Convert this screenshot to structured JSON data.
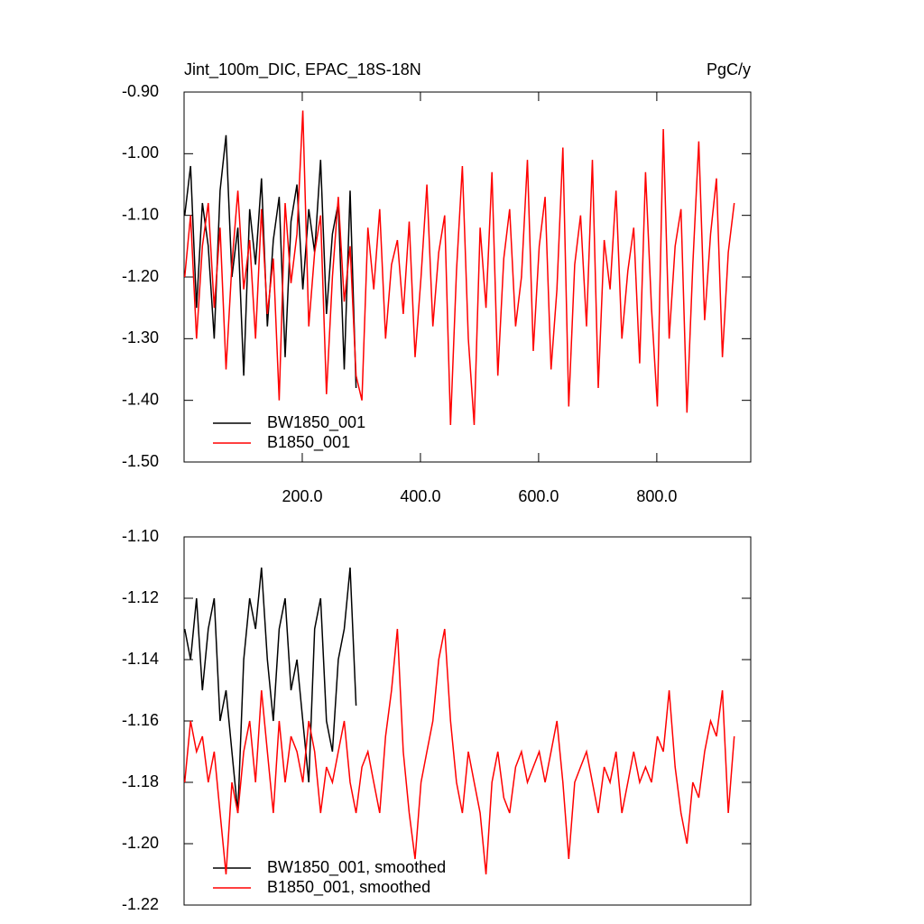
{
  "chart_data": [
    {
      "type": "line",
      "title": "Jint_100m_DIC, EPAC_18S-18N",
      "units": "PgC/y",
      "xlim": [
        0,
        959
      ],
      "xticks": [
        {
          "value": 200,
          "label": "200.0"
        },
        {
          "value": 400,
          "label": "400.0"
        },
        {
          "value": 600,
          "label": "600.0"
        },
        {
          "value": 800,
          "label": "800.0"
        }
      ],
      "ylim": [
        -1.5,
        -0.9
      ],
      "yticks": [
        {
          "value": -1.5,
          "label": "-1.50"
        },
        {
          "value": -1.4,
          "label": "-1.40"
        },
        {
          "value": -1.3,
          "label": "-1.30"
        },
        {
          "value": -1.2,
          "label": "-1.20"
        },
        {
          "value": -1.1,
          "label": "-1.10"
        },
        {
          "value": -1.0,
          "label": "-1.00"
        },
        {
          "value": -0.9,
          "label": "-0.90"
        }
      ],
      "series": [
        {
          "name": "BW1850_001",
          "color": "#000000",
          "x": [
            1,
            11,
            21,
            31,
            41,
            51,
            61,
            71,
            81,
            91,
            101,
            111,
            121,
            131,
            141,
            151,
            161,
            171,
            181,
            191,
            201,
            211,
            221,
            231,
            241,
            251,
            261,
            271,
            281,
            291
          ],
          "values": [
            -1.1,
            -1.02,
            -1.25,
            -1.08,
            -1.15,
            -1.3,
            -1.06,
            -0.97,
            -1.2,
            -1.12,
            -1.36,
            -1.09,
            -1.18,
            -1.04,
            -1.28,
            -1.14,
            -1.07,
            -1.33,
            -1.11,
            -1.05,
            -1.22,
            -1.09,
            -1.16,
            -1.01,
            -1.26,
            -1.13,
            -1.08,
            -1.35,
            -1.06,
            -1.38
          ]
        },
        {
          "name": "B1850_001",
          "color": "#ff0000",
          "x": [
            1,
            11,
            21,
            31,
            41,
            51,
            61,
            71,
            81,
            91,
            101,
            111,
            121,
            131,
            141,
            151,
            161,
            171,
            181,
            191,
            201,
            211,
            221,
            231,
            241,
            251,
            261,
            271,
            281,
            291,
            301,
            311,
            321,
            331,
            341,
            351,
            361,
            371,
            381,
            391,
            401,
            411,
            421,
            431,
            441,
            451,
            461,
            471,
            481,
            491,
            501,
            511,
            521,
            531,
            541,
            551,
            561,
            571,
            581,
            591,
            601,
            611,
            621,
            631,
            641,
            651,
            661,
            671,
            681,
            691,
            701,
            711,
            721,
            731,
            741,
            751,
            761,
            771,
            781,
            791,
            801,
            811,
            821,
            831,
            841,
            851,
            861,
            871,
            881,
            891,
            901,
            911,
            921,
            931
          ],
          "values": [
            -1.2,
            -1.1,
            -1.3,
            -1.15,
            -1.08,
            -1.25,
            -1.12,
            -1.35,
            -1.18,
            -1.06,
            -1.22,
            -1.14,
            -1.3,
            -1.09,
            -1.26,
            -1.17,
            -1.4,
            -1.08,
            -1.21,
            -1.13,
            -0.93,
            -1.28,
            -1.16,
            -1.1,
            -1.39,
            -1.2,
            -1.07,
            -1.24,
            -1.15,
            -1.36,
            -1.4,
            -1.12,
            -1.22,
            -1.09,
            -1.3,
            -1.18,
            -1.14,
            -1.26,
            -1.11,
            -1.33,
            -1.2,
            -1.05,
            -1.28,
            -1.16,
            -1.1,
            -1.44,
            -1.19,
            -1.02,
            -1.3,
            -1.44,
            -1.12,
            -1.25,
            -1.03,
            -1.36,
            -1.17,
            -1.09,
            -1.28,
            -1.2,
            -1.01,
            -1.32,
            -1.15,
            -1.07,
            -1.35,
            -1.22,
            -0.99,
            -1.41,
            -1.18,
            -1.1,
            -1.28,
            -1.01,
            -1.38,
            -1.14,
            -1.22,
            -1.06,
            -1.3,
            -1.19,
            -1.12,
            -1.34,
            -1.03,
            -1.25,
            -1.41,
            -0.96,
            -1.3,
            -1.15,
            -1.09,
            -1.42,
            -1.18,
            -0.98,
            -1.27,
            -1.13,
            -1.04,
            -1.33,
            -1.16,
            -1.08
          ]
        }
      ]
    },
    {
      "type": "line",
      "xlim": [
        0,
        959
      ],
      "ylim": [
        -1.22,
        -1.1
      ],
      "yticks": [
        {
          "value": -1.22,
          "label": "-1.22"
        },
        {
          "value": -1.2,
          "label": "-1.20"
        },
        {
          "value": -1.18,
          "label": "-1.18"
        },
        {
          "value": -1.16,
          "label": "-1.16"
        },
        {
          "value": -1.14,
          "label": "-1.14"
        },
        {
          "value": -1.12,
          "label": "-1.12"
        },
        {
          "value": -1.1,
          "label": "-1.10"
        }
      ],
      "series": [
        {
          "name": "BW1850_001, smoothed",
          "color": "#000000",
          "x": [
            1,
            11,
            21,
            31,
            41,
            51,
            61,
            71,
            81,
            91,
            101,
            111,
            121,
            131,
            141,
            151,
            161,
            171,
            181,
            191,
            201,
            211,
            221,
            231,
            241,
            251,
            261,
            271,
            281,
            291
          ],
          "values": [
            -1.13,
            -1.14,
            -1.12,
            -1.15,
            -1.13,
            -1.12,
            -1.16,
            -1.15,
            -1.17,
            -1.19,
            -1.14,
            -1.12,
            -1.13,
            -1.11,
            -1.14,
            -1.16,
            -1.13,
            -1.12,
            -1.15,
            -1.14,
            -1.16,
            -1.18,
            -1.13,
            -1.12,
            -1.16,
            -1.17,
            -1.14,
            -1.13,
            -1.11,
            -1.155
          ]
        },
        {
          "name": "B1850_001, smoothed",
          "color": "#ff0000",
          "x": [
            1,
            11,
            21,
            31,
            41,
            51,
            61,
            71,
            81,
            91,
            101,
            111,
            121,
            131,
            141,
            151,
            161,
            171,
            181,
            191,
            201,
            211,
            221,
            231,
            241,
            251,
            261,
            271,
            281,
            291,
            301,
            311,
            321,
            331,
            341,
            351,
            361,
            371,
            381,
            391,
            401,
            411,
            421,
            431,
            441,
            451,
            461,
            471,
            481,
            491,
            501,
            511,
            521,
            531,
            541,
            551,
            561,
            571,
            581,
            591,
            601,
            611,
            621,
            631,
            641,
            651,
            661,
            671,
            681,
            691,
            701,
            711,
            721,
            731,
            741,
            751,
            761,
            771,
            781,
            791,
            801,
            811,
            821,
            831,
            841,
            851,
            861,
            871,
            881,
            891,
            901,
            911,
            921,
            931
          ],
          "values": [
            -1.18,
            -1.16,
            -1.17,
            -1.165,
            -1.18,
            -1.17,
            -1.19,
            -1.21,
            -1.18,
            -1.19,
            -1.17,
            -1.16,
            -1.18,
            -1.15,
            -1.17,
            -1.19,
            -1.16,
            -1.18,
            -1.165,
            -1.17,
            -1.18,
            -1.16,
            -1.17,
            -1.19,
            -1.175,
            -1.18,
            -1.17,
            -1.16,
            -1.18,
            -1.19,
            -1.175,
            -1.17,
            -1.18,
            -1.19,
            -1.165,
            -1.15,
            -1.13,
            -1.17,
            -1.19,
            -1.205,
            -1.18,
            -1.17,
            -1.16,
            -1.14,
            -1.13,
            -1.16,
            -1.18,
            -1.19,
            -1.17,
            -1.18,
            -1.19,
            -1.21,
            -1.18,
            -1.17,
            -1.185,
            -1.19,
            -1.175,
            -1.17,
            -1.18,
            -1.175,
            -1.17,
            -1.18,
            -1.17,
            -1.16,
            -1.18,
            -1.205,
            -1.18,
            -1.175,
            -1.17,
            -1.18,
            -1.19,
            -1.175,
            -1.18,
            -1.17,
            -1.19,
            -1.18,
            -1.17,
            -1.18,
            -1.175,
            -1.18,
            -1.165,
            -1.17,
            -1.15,
            -1.175,
            -1.19,
            -1.2,
            -1.18,
            -1.185,
            -1.17,
            -1.16,
            -1.165,
            -1.15,
            -1.19,
            -1.165
          ]
        }
      ]
    }
  ]
}
